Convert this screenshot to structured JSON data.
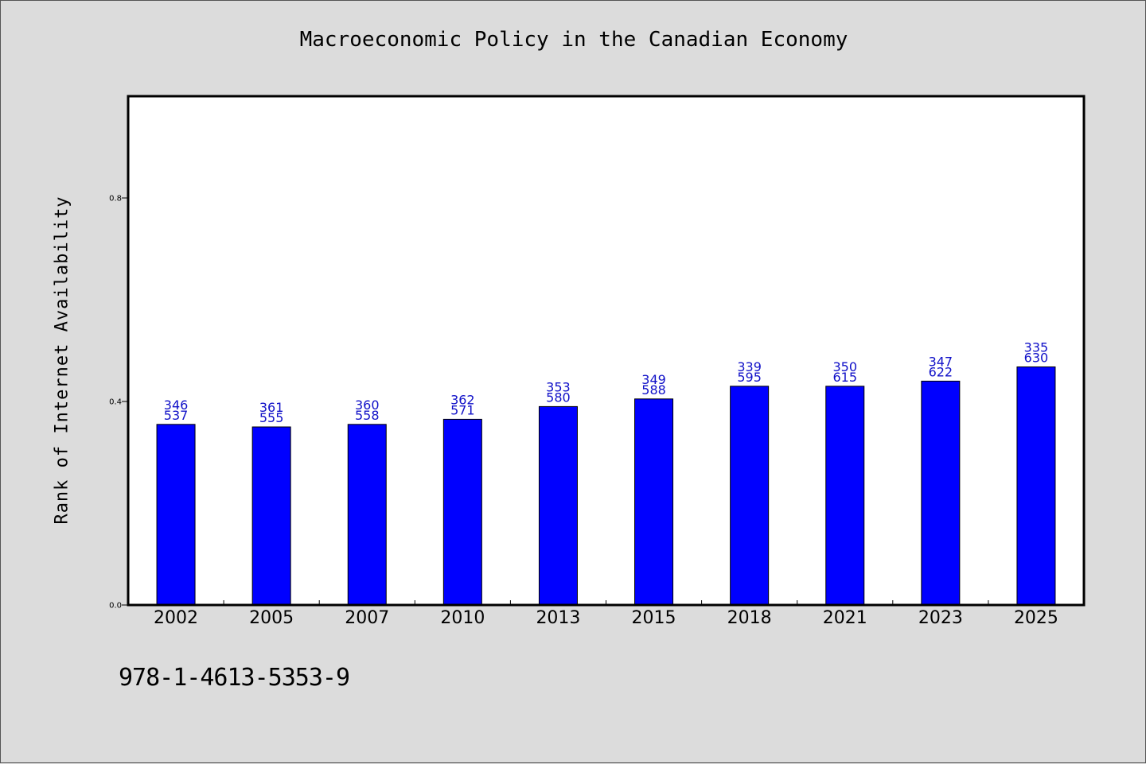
{
  "chart_data": {
    "type": "bar",
    "title": "Macroeconomic Policy in the Canadian Economy",
    "xlabel": "",
    "ylabel": "Rank of Internet Availability",
    "categories": [
      "2002",
      "2005",
      "2007",
      "2010",
      "2013",
      "2015",
      "2018",
      "2021",
      "2023",
      "2025"
    ],
    "values": [
      0.355,
      0.35,
      0.355,
      0.365,
      0.39,
      0.405,
      0.43,
      0.43,
      0.44,
      0.468
    ],
    "data_labels": [
      [
        "346",
        "537"
      ],
      [
        "361",
        "555"
      ],
      [
        "360",
        "558"
      ],
      [
        "362",
        "571"
      ],
      [
        "353",
        "580"
      ],
      [
        "349",
        "588"
      ],
      [
        "339",
        "595"
      ],
      [
        "350",
        "615"
      ],
      [
        "347",
        "622"
      ],
      [
        "335",
        "630"
      ]
    ],
    "y_ticks": [
      "0.0",
      "0.4",
      "0.8"
    ],
    "y_tick_values": [
      0.0,
      0.4,
      0.8
    ],
    "ylim": [
      0,
      1.0
    ],
    "grid": false,
    "legend": "none",
    "colors": {
      "bar": "#0000ff",
      "data_label": "#1010c8",
      "plot_background": "#ffffff",
      "page_background": "#dcdcdc"
    }
  },
  "footnote": "978-1-4613-5353-9"
}
